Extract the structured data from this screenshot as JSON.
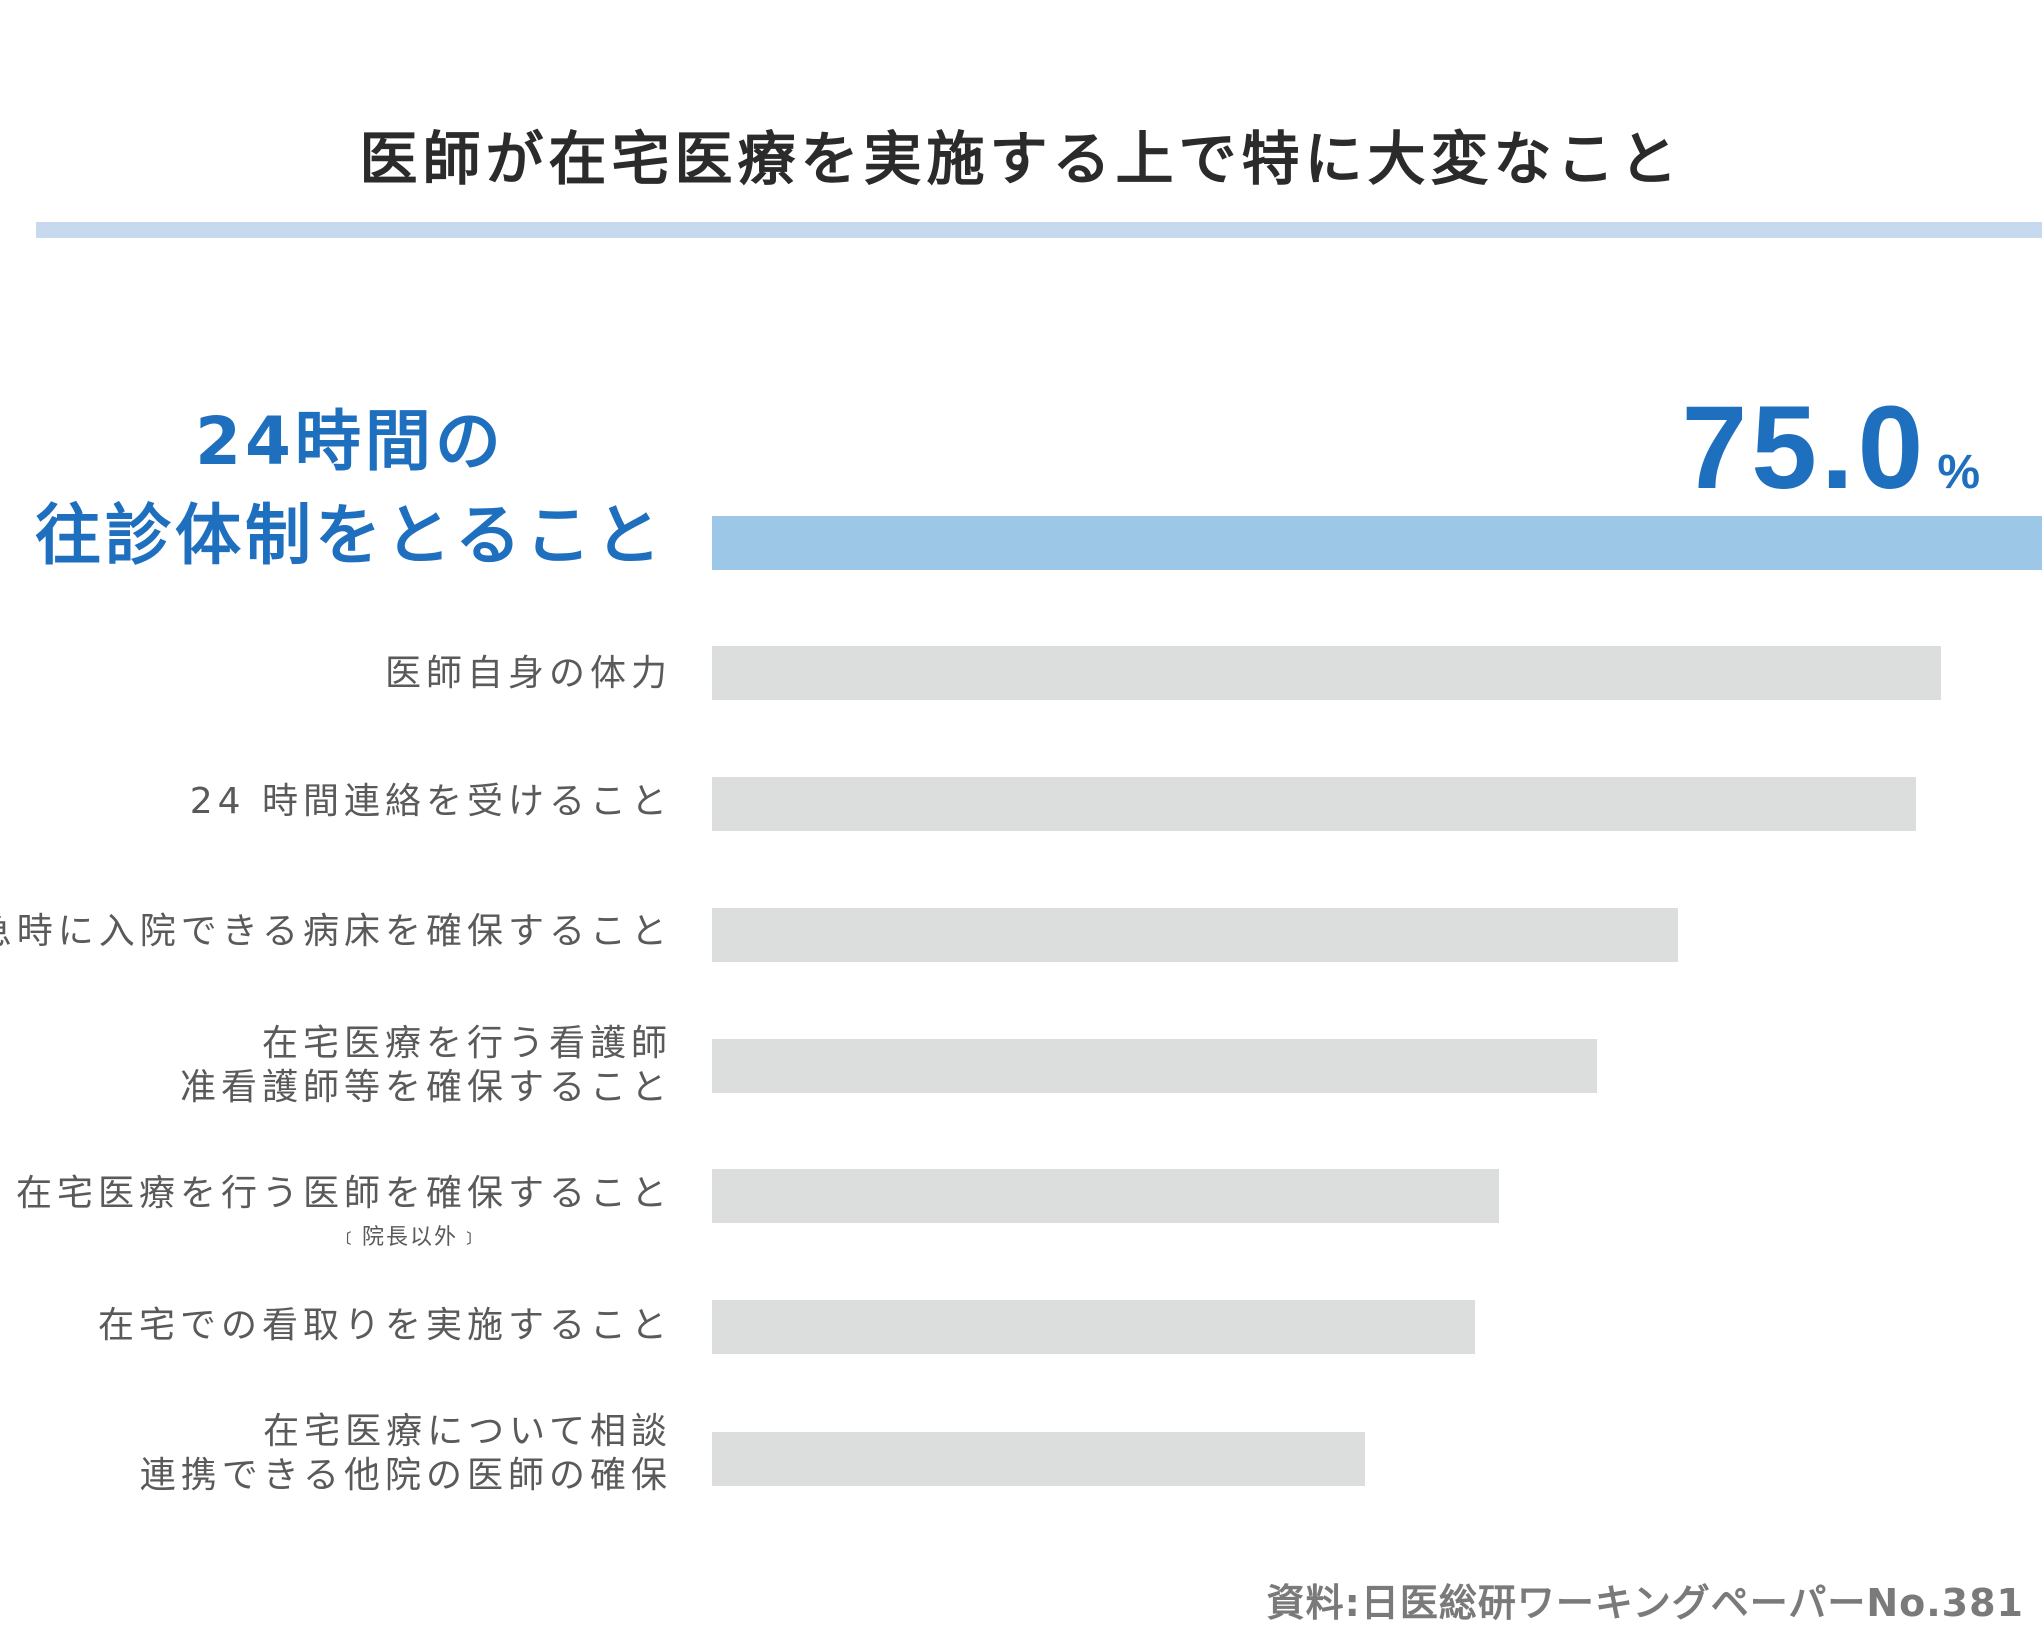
{
  "title": "医師が在宅医療を実施する上で特に大変なこと",
  "source": "資料:日医総研ワーキングペーパーNo.381",
  "chart_data": {
    "type": "bar",
    "orientation": "horizontal",
    "title": "医師が在宅医療を実施する上で特に大変なこと",
    "categories": [
      "24時間の往診体制をとること",
      "医師自身の体力",
      "24 時間連絡を受けること",
      "緊急時に入院できる病床を確保すること",
      "在宅医療を行う看護師准看護師等を確保すること",
      "在宅医療を行う医師を確保すること（院長以外）",
      "在宅での看取りを実施すること",
      "在宅医療について相談連携できる他院の医師の確保"
    ],
    "values": [
      75.0,
      69.3,
      67.9,
      54.5,
      49.9,
      44.4,
      43.0,
      36.8
    ],
    "highlight": {
      "label_lines": [
        "24時間の",
        "往診体制をとること"
      ],
      "value_text": "75.0",
      "unit": "%"
    },
    "rows": [
      {
        "lines": [
          "医師自身の体力"
        ]
      },
      {
        "lines": [
          "24 時間連絡を受けること"
        ]
      },
      {
        "lines": [
          "緊急時に入院できる病床を確保すること"
        ]
      },
      {
        "lines": [
          "在宅医療を行う看護師",
          "准看護師等を確保すること"
        ]
      },
      {
        "lines": [
          "在宅医療を行う医師を確保すること"
        ],
        "note": "﹝院長以外﹞"
      },
      {
        "lines": [
          "在宅での看取りを実施すること"
        ]
      },
      {
        "lines": [
          "在宅医療について相談",
          "連携できる他院の医師の確保"
        ]
      }
    ],
    "colors": {
      "highlight_bar": "#9dc7e6",
      "bar": "#dcdedd",
      "highlight_text": "#1f6fbf"
    }
  }
}
